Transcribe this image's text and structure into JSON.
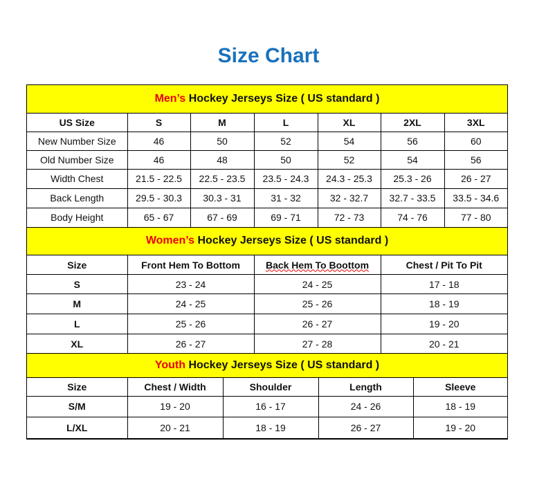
{
  "title": "Size Chart",
  "colors": {
    "title": "#1a72bb",
    "banner": "#ffff00",
    "highlight": "#e8000b"
  },
  "men": {
    "banner_highlight": "Men’s",
    "banner_rest": " Hockey Jerseys Size ( US standard )",
    "headers": [
      "US Size",
      "S",
      "M",
      "L",
      "XL",
      "2XL",
      "3XL"
    ],
    "rows": [
      [
        "New Number Size",
        "46",
        "50",
        "52",
        "54",
        "56",
        "60"
      ],
      [
        "Old Number Size",
        "46",
        "48",
        "50",
        "52",
        "54",
        "56"
      ],
      [
        "Width Chest",
        "21.5 - 22.5",
        "22.5 - 23.5",
        "23.5 - 24.3",
        "24.3 - 25.3",
        "25.3 - 26",
        "26 - 27"
      ],
      [
        "Back Length",
        "29.5 - 30.3",
        "30.3 - 31",
        "31 - 32",
        "32 - 32.7",
        "32.7 - 33.5",
        "33.5 - 34.6"
      ],
      [
        "Body Height",
        "65 - 67",
        "67 - 69",
        "69 - 71",
        "72 - 73",
        "74 - 76",
        "77 - 80"
      ]
    ]
  },
  "women": {
    "banner_highlight": "Women’s",
    "banner_rest": " Hockey Jerseys Size ( US standard )",
    "headers": [
      "Size",
      "Front Hem To Bottom",
      "Back Hem To Boottom",
      "Chest / Pit To Pit"
    ],
    "rows": [
      [
        "S",
        "23 - 24",
        "24 - 25",
        "17 - 18"
      ],
      [
        "M",
        "24 - 25",
        "25 - 26",
        "18 - 19"
      ],
      [
        "L",
        "25 - 26",
        "26 - 27",
        "19 - 20"
      ],
      [
        "XL",
        "26 - 27",
        "27 - 28",
        "20 - 21"
      ]
    ]
  },
  "youth": {
    "banner_highlight": "Youth",
    "banner_rest": " Hockey Jerseys Size ( US standard )",
    "headers": [
      "Size",
      "Chest / Width",
      "Shoulder",
      "Length",
      "Sleeve"
    ],
    "rows": [
      [
        "S/M",
        "19 - 20",
        "16 - 17",
        "24 - 26",
        "18 - 19"
      ],
      [
        "L/XL",
        "20 - 21",
        "18 - 19",
        "26 - 27",
        "19 - 20"
      ]
    ]
  }
}
